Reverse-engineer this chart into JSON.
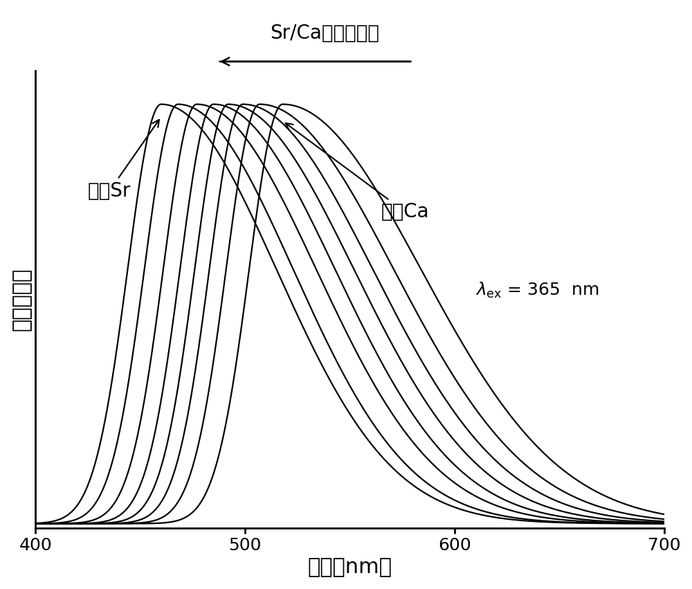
{
  "xlabel": "波长（nm）",
  "ylabel": "归一化强度",
  "xlim": [
    400,
    700
  ],
  "ylim": [
    -0.01,
    1.08
  ],
  "xticks": [
    400,
    500,
    600,
    700
  ],
  "annotation_label": "Sr/Ca的比例增加",
  "label_allSr": "全为Sr",
  "label_allCa": "全为Ca",
  "num_curves": 8,
  "peak_positions": [
    460,
    468,
    477,
    485,
    492,
    499,
    507,
    518
  ],
  "sigma_left": [
    16,
    16,
    16,
    16,
    16,
    16,
    16,
    16
  ],
  "sigma_right": [
    55,
    55,
    57,
    58,
    60,
    62,
    64,
    66
  ],
  "line_color": "#000000",
  "line_width": 1.6,
  "background_color": "#ffffff",
  "font_size_axis_label": 22,
  "font_size_tick": 18,
  "font_size_annotation": 20,
  "font_size_lambda": 18
}
